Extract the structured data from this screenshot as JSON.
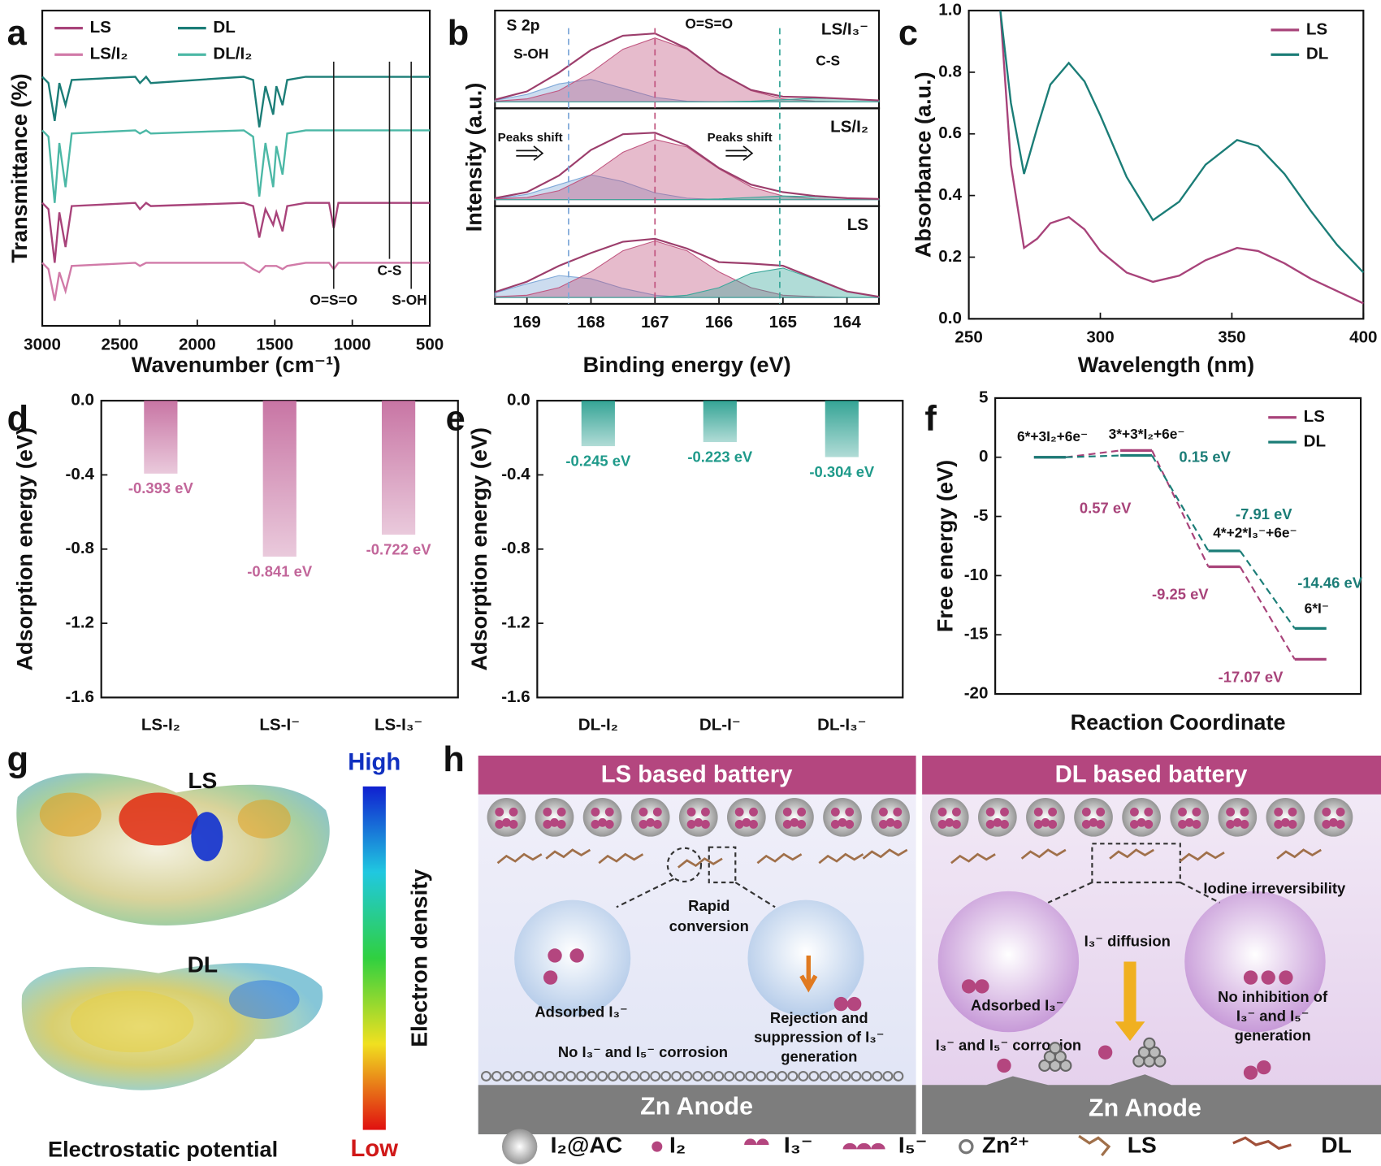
{
  "chart_data": [
    {
      "label": "a",
      "type": "line",
      "xlabel": "Wavenumber (cm⁻¹)",
      "ylabel": "Transmittance (%)",
      "x": [
        3000,
        2960,
        2920,
        2890,
        2850,
        2810,
        2400,
        2370,
        2330,
        2300,
        1700,
        1640,
        1600,
        1560,
        1510,
        1490,
        1450,
        1420,
        1300,
        1150,
        1120,
        1090,
        800,
        760,
        620,
        500
      ],
      "xlim": [
        3000,
        500
      ],
      "xticks": [
        3000,
        2500,
        2000,
        1500,
        1000,
        500
      ],
      "ylim": [
        0,
        100
      ],
      "legend": "upper left",
      "series": [
        {
          "name": "LS",
          "color": "#a8437a",
          "values": [
            39,
            37,
            20,
            36,
            25,
            38,
            39,
            37,
            39,
            38,
            39,
            38,
            28,
            37,
            32,
            36,
            30,
            38,
            39,
            39,
            31,
            39,
            39,
            39,
            39,
            39
          ]
        },
        {
          "name": "DL",
          "color": "#1b7d77",
          "values": [
            79,
            77,
            65,
            77,
            70,
            78,
            79,
            77,
            79,
            77,
            79,
            78,
            63,
            76,
            67,
            76,
            70,
            78,
            79,
            79,
            79,
            79,
            79,
            79,
            79,
            79
          ]
        },
        {
          "name": "LS/I₂",
          "color": "#d17aa8",
          "values": [
            20,
            18,
            8,
            17,
            11,
            19,
            20,
            19,
            20,
            20,
            20,
            18,
            17,
            19,
            19,
            19,
            18,
            19,
            20,
            20,
            18,
            20,
            20,
            20,
            20,
            20
          ]
        },
        {
          "name": "DL/I₂",
          "color": "#4cb8a6",
          "values": [
            62,
            60,
            39,
            58,
            44,
            61,
            62,
            61,
            62,
            61,
            62,
            60,
            41,
            58,
            44,
            57,
            48,
            61,
            62,
            62,
            62,
            62,
            62,
            62,
            62,
            62
          ]
        }
      ],
      "annotations": [
        {
          "text": "O=S=O",
          "x": 1120
        },
        {
          "text": "C-S",
          "x": 760
        },
        {
          "text": "S-OH",
          "x": 620
        }
      ]
    },
    {
      "label": "b",
      "type": "xps",
      "title": "S 2p",
      "xlabel": "Binding energy (eV)",
      "ylabel": "Intensity (a.u.)",
      "x": [
        169.5,
        169,
        168.5,
        168,
        167.5,
        167,
        166.5,
        166,
        165.5,
        165,
        164.5,
        164,
        163.5
      ],
      "xlim": [
        169.5,
        163.5
      ],
      "xticks": [
        169,
        168,
        167,
        166,
        165,
        164
      ],
      "reference_lines": [
        {
          "name": "S-OH",
          "x": 168.35,
          "color": "#7fa8d8"
        },
        {
          "name": "O=S=O",
          "x": 167.0,
          "color": "#c0557f"
        },
        {
          "name": "C-S",
          "x": 165.05,
          "color": "#3aa79a"
        }
      ],
      "annotations": [
        "Peaks shift",
        "Peaks shift"
      ],
      "subplots": [
        {
          "name": "LS/I₃⁻",
          "ylim": [
            -0.05,
            1.05
          ],
          "envelope": [
            0.03,
            0.14,
            0.39,
            0.69,
            0.88,
            0.91,
            0.71,
            0.39,
            0.16,
            0.07,
            0.06,
            0.04,
            0.02
          ],
          "components": [
            [
              0.02,
              0.1,
              0.24,
              0.3,
              0.18,
              0.06,
              0.01,
              0,
              0,
              0,
              0,
              0,
              0
            ],
            [
              0.01,
              0.04,
              0.15,
              0.39,
              0.7,
              0.85,
              0.7,
              0.39,
              0.15,
              0.04,
              0.01,
              0,
              0
            ],
            [
              0,
              0,
              0,
              0,
              0,
              0,
              0,
              0,
              0.01,
              0.03,
              0.05,
              0.04,
              0.02
            ]
          ]
        },
        {
          "name": "LS/I₂",
          "ylim": [
            -0.05,
            1.05
          ],
          "envelope": [
            0.02,
            0.1,
            0.32,
            0.66,
            0.87,
            0.89,
            0.72,
            0.42,
            0.2,
            0.1,
            0.05,
            0.02,
            0.01
          ],
          "components": [
            [
              0.01,
              0.07,
              0.2,
              0.33,
              0.24,
              0.09,
              0.02,
              0,
              0,
              0,
              0,
              0,
              0
            ],
            [
              0.01,
              0.03,
              0.12,
              0.33,
              0.63,
              0.8,
              0.7,
              0.41,
              0.17,
              0.05,
              0.01,
              0,
              0
            ],
            [
              0,
              0,
              0,
              0,
              0,
              0,
              0,
              0.01,
              0.03,
              0.05,
              0.04,
              0.02,
              0.01
            ]
          ]
        },
        {
          "name": "LS",
          "ylim": [
            -0.05,
            1.05
          ],
          "envelope": [
            0.07,
            0.21,
            0.42,
            0.59,
            0.74,
            0.78,
            0.65,
            0.47,
            0.45,
            0.42,
            0.25,
            0.08,
            0.01
          ],
          "components": [
            [
              0.06,
              0.18,
              0.29,
              0.25,
              0.12,
              0.03,
              0,
              0,
              0,
              0,
              0,
              0,
              0
            ],
            [
              0.01,
              0.03,
              0.13,
              0.34,
              0.62,
              0.75,
              0.62,
              0.34,
              0.13,
              0.03,
              0.01,
              0,
              0
            ],
            [
              0,
              0,
              0,
              0,
              0,
              0,
              0.03,
              0.13,
              0.32,
              0.39,
              0.24,
              0.08,
              0.01
            ]
          ]
        }
      ]
    },
    {
      "label": "c",
      "type": "line",
      "xlabel": "Wavelength (nm)",
      "ylabel": "Absorbance (a.u.)",
      "x": [
        262,
        266,
        271,
        276,
        281,
        288,
        294,
        300,
        310,
        320,
        330,
        340,
        352,
        360,
        370,
        380,
        390,
        400
      ],
      "xlim": [
        250,
        400
      ],
      "xticks": [
        250,
        300,
        350,
        400
      ],
      "ylim": [
        0,
        1
      ],
      "yticks": [
        {
          "value": 0,
          "label": "0.0"
        },
        0.2,
        0.4,
        0.6,
        0.8,
        {
          "value": 1,
          "label": "1.0"
        }
      ],
      "legend": "upper right",
      "series": [
        {
          "name": "LS",
          "color": "#a8437a",
          "values": [
            1.0,
            0.5,
            0.23,
            0.26,
            0.31,
            0.33,
            0.29,
            0.22,
            0.15,
            0.12,
            0.14,
            0.19,
            0.23,
            0.22,
            0.18,
            0.13,
            0.09,
            0.05
          ]
        },
        {
          "name": "DL",
          "color": "#1b7d77",
          "values": [
            1.0,
            0.7,
            0.47,
            0.62,
            0.76,
            0.83,
            0.77,
            0.66,
            0.46,
            0.32,
            0.38,
            0.5,
            0.58,
            0.56,
            0.47,
            0.35,
            0.24,
            0.15
          ]
        }
      ]
    },
    {
      "label": "d",
      "type": "bar",
      "ylabel": "Adsorption energy (eV)",
      "categories": [
        "LS-I₂",
        "LS-I⁻",
        "LS-I₃⁻"
      ],
      "values": [
        -0.393,
        -0.841,
        -0.722
      ],
      "value_labels": [
        "-0.393 eV",
        "-0.841 eV",
        "-0.722 eV"
      ],
      "color": "#c2669a",
      "ylim": [
        -1.6,
        0
      ],
      "yticks": [
        -1.6,
        -1.2,
        -0.8,
        -0.4,
        {
          "value": 0,
          "label": "0.0"
        }
      ]
    },
    {
      "label": "e",
      "type": "bar",
      "ylabel": "Adsorption energy (eV)",
      "categories": [
        "DL-I₂",
        "DL-I⁻",
        "DL-I₃⁻"
      ],
      "values": [
        -0.245,
        -0.223,
        -0.304
      ],
      "value_labels": [
        "-0.245 eV",
        "-0.223 eV",
        "-0.304 eV"
      ],
      "color": "#1f9a8a",
      "ylim": [
        -1.6,
        0
      ],
      "yticks": [
        -1.6,
        -1.2,
        -0.8,
        -0.4,
        {
          "value": 0,
          "label": "0.0"
        }
      ]
    },
    {
      "label": "f",
      "type": "energy",
      "xlabel": "Reaction Coordinate",
      "ylabel": "Free energy (eV)",
      "states": [
        "6*+3I₂+6e⁻",
        "3*+3*I₂+6e⁻",
        "4*+2*I₃⁻+6e⁻",
        "6*I⁻"
      ],
      "ylim": [
        -20,
        5
      ],
      "yticks": [
        -20,
        -15,
        -10,
        -5,
        0,
        5
      ],
      "legend": "upper right",
      "series": [
        {
          "name": "LS",
          "color": "#a8437a",
          "values": [
            0,
            0.57,
            -9.25,
            -17.07
          ],
          "value_labels": [
            null,
            "0.57 eV",
            "-9.25 eV",
            "-17.07 eV"
          ]
        },
        {
          "name": "DL",
          "color": "#1b7d77",
          "values": [
            0,
            0.15,
            -7.91,
            -14.46
          ],
          "value_labels": [
            null,
            "0.15 eV",
            "-7.91 eV",
            "-14.46 eV"
          ]
        }
      ]
    }
  ],
  "figure": {
    "g": {
      "label": "g",
      "molecules": [
        "LS",
        "DL"
      ],
      "scale_high": "High",
      "scale_low": "Low",
      "scale_title": "Electron density",
      "caption": "Electrostatic potential"
    },
    "h": {
      "label": "h",
      "left": {
        "title": "LS based battery",
        "rapid": [
          "Rapid",
          "conversion"
        ],
        "adsorbed": "Adsorbed I₃⁻",
        "rejection": [
          "Rejection and",
          "suppression of I₃⁻",
          "generation"
        ],
        "no_corrosion": "No I₃⁻ and I₅⁻ corrosion",
        "anode": "Zn Anode"
      },
      "right": {
        "title": "DL based battery",
        "irreversibility": "Iodine irreversibility",
        "diffusion": "I₃⁻ diffusion",
        "adsorbed": "Adsorbed I₃⁻",
        "no_inhibition": [
          "No inhibition of",
          "I₃⁻ and I₅⁻",
          "generation"
        ],
        "corrosion": "I₃⁻ and I₅⁻ corrosion",
        "anode": "Zn Anode"
      },
      "legend": [
        "I₂@AC",
        "I₂",
        "I₃⁻",
        "I₅⁻",
        "Zn²⁺",
        "LS",
        "DL"
      ]
    }
  }
}
